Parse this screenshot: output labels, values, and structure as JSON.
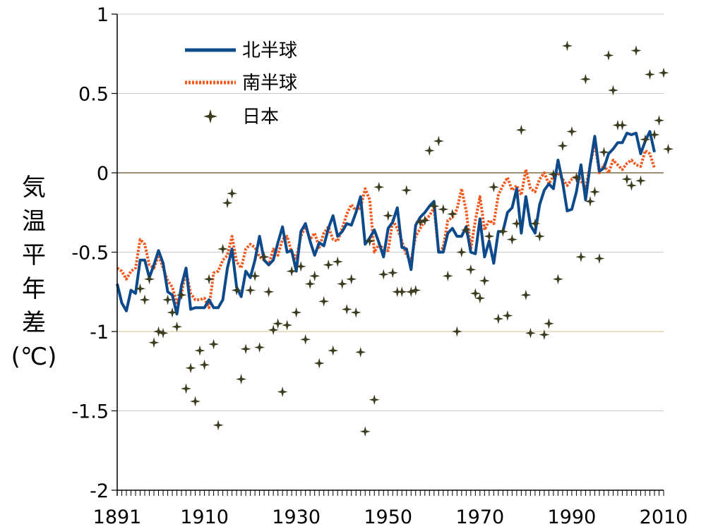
{
  "chart_data": {
    "type": "line",
    "ylabel_chars": [
      "気",
      "温",
      "平",
      "年",
      "差",
      "(℃)"
    ],
    "ylim": [
      -2,
      1
    ],
    "xlim": [
      1891,
      2010
    ],
    "y_ticks": [
      "1",
      "0.5",
      "0",
      "-0.5",
      "-1",
      "-1.5",
      "-2"
    ],
    "x_ticks": [
      "1891",
      "1910",
      "1930",
      "1950",
      "1970",
      "1990",
      "2010"
    ],
    "grid": "horizontal",
    "legend_position": "top-left",
    "colors": {
      "nh": "#0d4a8c",
      "sh": "#f2591e",
      "japan": "#3b3b1e",
      "zero_line": "#7a6a42",
      "minus1_line": "#e2c9a8",
      "grid": "#c8c8c8"
    },
    "series": [
      {
        "name": "北半球",
        "style": "solid",
        "values": [
          -0.7,
          -0.82,
          -0.87,
          -0.74,
          -0.76,
          -0.55,
          -0.55,
          -0.66,
          -0.58,
          -0.49,
          -0.57,
          -0.75,
          -0.77,
          -0.89,
          -0.71,
          -0.6,
          -0.86,
          -0.85,
          -0.85,
          -0.85,
          -0.8,
          -0.85,
          -0.85,
          -0.8,
          -0.6,
          -0.48,
          -0.72,
          -0.78,
          -0.62,
          -0.66,
          -0.55,
          -0.4,
          -0.55,
          -0.58,
          -0.55,
          -0.44,
          -0.34,
          -0.5,
          -0.49,
          -0.62,
          -0.37,
          -0.32,
          -0.43,
          -0.52,
          -0.44,
          -0.46,
          -0.35,
          -0.27,
          -0.4,
          -0.37,
          -0.32,
          -0.33,
          -0.25,
          -0.15,
          -0.45,
          -0.41,
          -0.36,
          -0.44,
          -0.53,
          -0.35,
          -0.31,
          -0.22,
          -0.47,
          -0.48,
          -0.61,
          -0.33,
          -0.28,
          -0.25,
          -0.21,
          -0.18,
          -0.5,
          -0.5,
          -0.38,
          -0.35,
          -0.4,
          -0.4,
          -0.34,
          -0.5,
          -0.51,
          -0.29,
          -0.53,
          -0.43,
          -0.57,
          -0.37,
          -0.37,
          -0.25,
          -0.22,
          -0.1,
          -0.38,
          -0.15,
          -0.33,
          -0.38,
          -0.2,
          -0.11,
          -0.07,
          -0.1,
          0.08,
          -0.06,
          -0.24,
          -0.23,
          -0.12,
          0.05,
          -0.17,
          0.05,
          0.23,
          0.01,
          0.03,
          0.12,
          0.15,
          0.19,
          0.19,
          0.25,
          0.24,
          0.25,
          0.12,
          0.2,
          0.26,
          0.13
        ]
      },
      {
        "name": "南半球",
        "style": "dotted",
        "values": [
          -0.6,
          -0.62,
          -0.67,
          -0.62,
          -0.6,
          -0.42,
          -0.45,
          -0.58,
          -0.6,
          -0.52,
          -0.6,
          -0.68,
          -0.72,
          -0.82,
          -0.76,
          -0.62,
          -0.76,
          -0.8,
          -0.8,
          -0.79,
          -0.85,
          -0.63,
          -0.62,
          -0.55,
          -0.52,
          -0.4,
          -0.56,
          -0.6,
          -0.48,
          -0.45,
          -0.47,
          -0.53,
          -0.55,
          -0.58,
          -0.48,
          -0.52,
          -0.42,
          -0.4,
          -0.5,
          -0.54,
          -0.4,
          -0.34,
          -0.42,
          -0.38,
          -0.47,
          -0.38,
          -0.34,
          -0.42,
          -0.43,
          -0.35,
          -0.26,
          -0.2,
          -0.24,
          -0.22,
          -0.1,
          -0.17,
          -0.5,
          -0.45,
          -0.48,
          -0.49,
          -0.3,
          -0.35,
          -0.43,
          -0.52,
          -0.55,
          -0.4,
          -0.35,
          -0.3,
          -0.27,
          -0.22,
          -0.5,
          -0.47,
          -0.3,
          -0.28,
          -0.23,
          -0.1,
          -0.24,
          -0.48,
          -0.3,
          -0.15,
          -0.36,
          -0.3,
          -0.32,
          -0.14,
          -0.08,
          -0.03,
          -0.11,
          -0.08,
          -0.14,
          0.02,
          -0.1,
          -0.12,
          -0.04,
          0.0,
          -0.07,
          -0.02,
          0.0,
          -0.04,
          -0.08,
          -0.04,
          -0.02,
          -0.05,
          -0.1,
          0.05,
          0.19,
          0.0,
          0.05,
          0.0,
          0.08,
          0.05,
          0.02,
          0.06,
          0.08,
          0.05,
          0.04,
          0.14,
          0.12,
          0.03
        ]
      },
      {
        "name": "日本",
        "style": "markers",
        "values": [
          null,
          null,
          null,
          null,
          null,
          -0.73,
          -0.8,
          -0.67,
          -1.07,
          -1.0,
          -1.01,
          -0.8,
          -0.88,
          -0.97,
          -0.77,
          -1.36,
          -1.23,
          -1.44,
          -1.12,
          -1.21,
          -0.67,
          -1.08,
          -1.59,
          -0.48,
          -0.19,
          -0.13,
          -0.74,
          -1.3,
          -1.11,
          -0.74,
          -0.65,
          -1.1,
          -0.53,
          -0.75,
          -0.99,
          -0.95,
          -1.38,
          -0.96,
          -0.62,
          -0.88,
          -0.59,
          -1.05,
          -0.7,
          -0.65,
          -1.2,
          -0.81,
          -0.58,
          -1.12,
          -0.56,
          -0.7,
          -0.86,
          -0.67,
          -0.88,
          -1.13,
          -1.63,
          -0.43,
          -1.43,
          -0.09,
          -0.64,
          -0.27,
          -0.63,
          -0.75,
          -0.75,
          -0.11,
          -0.75,
          -0.74,
          -0.31,
          -0.3,
          0.14,
          -0.21,
          0.2,
          -0.23,
          -0.65,
          -0.26,
          -1.0,
          -0.5,
          -0.36,
          -0.61,
          -0.76,
          -0.79,
          -0.68,
          -0.4,
          -0.09,
          -0.92,
          -0.37,
          -0.9,
          -0.42,
          -0.32,
          0.27,
          -0.77,
          -1.01,
          -0.32,
          -0.4,
          -1.02,
          -0.95,
          -0.01,
          -0.67,
          0.17,
          0.8,
          0.26,
          -0.03,
          -0.53,
          0.59,
          -0.18,
          -0.12,
          -0.54,
          0.13,
          0.74,
          0.52,
          0.3,
          0.3,
          -0.04,
          -0.08,
          0.77,
          -0.05,
          0.21,
          0.62,
          0.24,
          0.33,
          0.63,
          0.15
        ]
      }
    ]
  }
}
